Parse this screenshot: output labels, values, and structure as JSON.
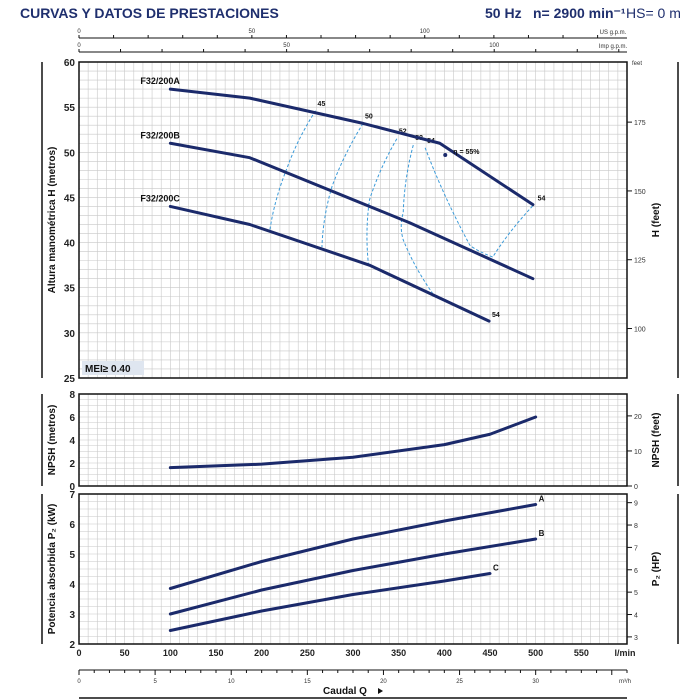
{
  "header": {
    "title": "CURVAS Y DATOS DE PRESTACIONES",
    "frequency": "50 Hz",
    "speed": "n= 2900 min⁻¹",
    "hs": "HS= 0 m"
  },
  "colors": {
    "title": "#1f2f6e",
    "curve": "#1b2a6b",
    "efficiency": "#3a9ad9",
    "grid": "#c8c8c8"
  },
  "chart_data": [
    {
      "type": "line",
      "title": "Altura manométrica H",
      "ylabel": "Altura manométrica H  (metros)",
      "ylabel_right": "H  (feet)",
      "ylim": [
        25,
        60
      ],
      "yticks": [
        25,
        30,
        35,
        40,
        45,
        50,
        55,
        60
      ],
      "yticks_right": [
        100,
        125,
        150,
        175
      ],
      "right_unit": "feet",
      "grid": true,
      "note": "MEI≥ 0.40",
      "series": [
        {
          "name": "F32/200A",
          "x": [
            100,
            187,
            311,
            395,
            497
          ],
          "y": [
            57,
            56,
            53.2,
            51,
            44.2
          ]
        },
        {
          "name": "F32/200B",
          "x": [
            100,
            187,
            362,
            497
          ],
          "y": [
            51,
            49.4,
            42.2,
            36
          ]
        },
        {
          "name": "F32/200C",
          "x": [
            100,
            187,
            318,
            449
          ],
          "y": [
            44,
            42,
            37.5,
            31.3
          ]
        }
      ],
      "efficiency_lines": [
        {
          "label": "45",
          "x": [
            259,
            228,
            209
          ],
          "y": [
            54.6,
            48.3,
            41.4
          ]
        },
        {
          "label": "50",
          "x": [
            311,
            277,
            266
          ],
          "y": [
            53.2,
            46.2,
            39.5
          ]
        },
        {
          "label": "52",
          "x": [
            348,
            318,
            317
          ],
          "y": [
            51.5,
            44.7,
            37.5
          ]
        },
        {
          "label": "53",
          "x": [
            366,
            355,
            355,
            387
          ],
          "y": [
            50.8,
            43.3,
            40.3,
            34.4
          ]
        },
        {
          "label": "54",
          "x": [
            379,
            428,
            453,
            498
          ],
          "y": [
            50.5,
            39.7,
            38.4,
            44.2
          ]
        }
      ],
      "end_labels": [
        {
          "label": "54",
          "x": 500,
          "y": 44.2
        },
        {
          "label": "54",
          "x": 450,
          "y": 31.3
        }
      ],
      "best_efficiency": {
        "label": "η = 55%",
        "x": 401,
        "y": 49.7
      }
    },
    {
      "type": "line",
      "title": "NPSH",
      "ylabel": "NPSH  (metros)",
      "ylabel_right": "NPSH  (feet)",
      "ylim": [
        0,
        8
      ],
      "yticks": [
        0,
        2,
        4,
        6,
        8
      ],
      "yticks_right": [
        0,
        10,
        20
      ],
      "grid": true,
      "series": [
        {
          "name": "NPSH",
          "x": [
            100,
            200,
            300,
            400,
            450,
            500
          ],
          "y": [
            1.6,
            1.9,
            2.5,
            3.6,
            4.5,
            6.0
          ]
        }
      ]
    },
    {
      "type": "line",
      "title": "Potencia absorbida P2",
      "ylabel": "Potencia absorbida  P₂  (kW)",
      "ylabel_right": "P₂  (HP)",
      "ylim": [
        2,
        7
      ],
      "yticks": [
        2,
        3,
        4,
        5,
        6,
        7
      ],
      "yticks_right": [
        3,
        4,
        5,
        6,
        7,
        8,
        9
      ],
      "grid": true,
      "series": [
        {
          "name": "A",
          "x": [
            100,
            200,
            300,
            400,
            500
          ],
          "y": [
            3.85,
            4.75,
            5.5,
            6.1,
            6.65
          ]
        },
        {
          "name": "B",
          "x": [
            100,
            200,
            300,
            400,
            500
          ],
          "y": [
            3.0,
            3.8,
            4.45,
            5.0,
            5.5
          ]
        },
        {
          "name": "C",
          "x": [
            100,
            200,
            300,
            400,
            450
          ],
          "y": [
            2.45,
            3.1,
            3.65,
            4.1,
            4.35
          ]
        }
      ]
    }
  ],
  "x_axes": {
    "xlabel": "Caudal Q",
    "lmin": {
      "unit": "l/min",
      "range": [
        0,
        600
      ],
      "ticks": [
        0,
        50,
        100,
        150,
        200,
        250,
        300,
        350,
        400,
        450,
        500,
        550
      ]
    },
    "m3h": {
      "unit": "m³/h",
      "ticks": [
        0,
        5,
        10,
        15,
        20,
        25,
        30
      ]
    },
    "us_gpm": {
      "unit": "US g.p.m.",
      "ticks": [
        0,
        50,
        100
      ]
    },
    "imp_gpm": {
      "unit": "Imp g.p.m.",
      "ticks": [
        0,
        50,
        100
      ]
    }
  }
}
